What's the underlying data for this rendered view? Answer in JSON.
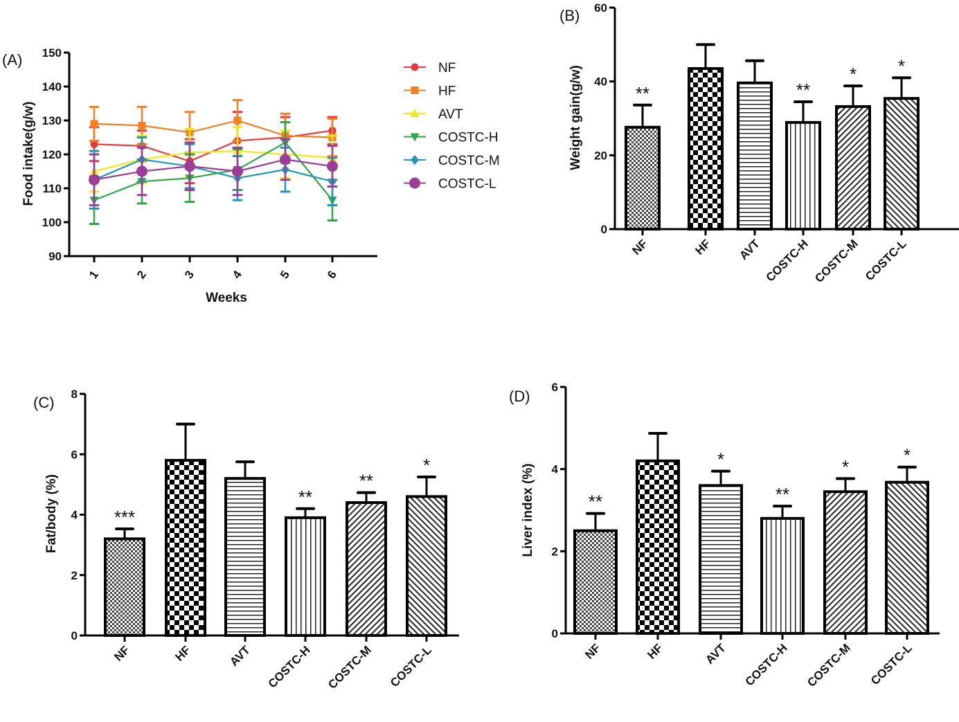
{
  "chart_data": [
    {
      "id": "A",
      "type": "line",
      "panel_label": "(A)",
      "title": "",
      "xlabel": "Weeks",
      "ylabel": "Food intake(g/w)",
      "x": [
        1,
        2,
        3,
        4,
        5,
        6
      ],
      "x_tick_labels": [
        "1",
        "2",
        "3",
        "4",
        "5",
        "6"
      ],
      "ylim": [
        90,
        150
      ],
      "y_ticks": [
        90,
        100,
        110,
        120,
        130,
        140,
        150
      ],
      "grid": false,
      "legend_position": "right",
      "series": [
        {
          "name": "NF",
          "color": "#e8383d",
          "marker": "circle",
          "values": [
            123,
            122.5,
            118,
            124,
            125,
            127
          ],
          "errors": [
            5,
            4.5,
            6.5,
            8.5,
            6,
            4
          ]
        },
        {
          "name": "HF",
          "color": "#f47f20",
          "marker": "square",
          "values": [
            129,
            128.5,
            126.5,
            130,
            125.5,
            125
          ],
          "errors": [
            5,
            5.5,
            6,
            6,
            6.5,
            5.5
          ]
        },
        {
          "name": "AVT",
          "color": "#f5e81a",
          "marker": "triangle-up",
          "values": [
            115,
            118.5,
            120.5,
            121,
            120,
            119
          ],
          "errors": [
            6,
            7,
            7,
            7,
            7,
            6.5
          ]
        },
        {
          "name": "COSTC-H",
          "color": "#2ea844",
          "marker": "triangle-down",
          "values": [
            106.5,
            112,
            113,
            115.5,
            123.5,
            106.5
          ],
          "errors": [
            7,
            6.5,
            7,
            6,
            6,
            6
          ]
        },
        {
          "name": "COSTC-M",
          "color": "#2196b8",
          "marker": "diamond",
          "values": [
            112.5,
            118.5,
            116.5,
            113,
            115.5,
            112
          ],
          "errors": [
            8.5,
            6.5,
            6.5,
            6.5,
            6.5,
            7
          ]
        },
        {
          "name": "COSTC-L",
          "color": "#9c3d9a",
          "marker": "big-circle",
          "values": [
            112.5,
            115,
            116.5,
            115,
            118.5,
            116.5
          ],
          "errors": [
            7.5,
            7,
            7,
            7,
            6,
            6
          ]
        }
      ]
    },
    {
      "id": "B",
      "type": "bar",
      "panel_label": "(B)",
      "title": "",
      "xlabel": "",
      "ylabel": "Weight gain(g/w)",
      "categories": [
        "NF",
        "HF",
        "AVT",
        "COSTC-H",
        "COSTC-M",
        "COSTC-L"
      ],
      "values": [
        27.6,
        43.5,
        39.6,
        28.9,
        33.2,
        35.4
      ],
      "errors": [
        6.0,
        6.5,
        6.0,
        5.6,
        5.6,
        5.6
      ],
      "significance": [
        "**",
        "",
        "",
        "**",
        "*",
        "*"
      ],
      "patterns": [
        "fine-check",
        "coarse-check",
        "horizontal",
        "vertical",
        "diag-right",
        "diag-left"
      ],
      "ylim": [
        0,
        60
      ],
      "y_ticks": [
        0,
        20,
        40,
        60
      ],
      "grid": false
    },
    {
      "id": "C",
      "type": "bar",
      "panel_label": "(C)",
      "title": "",
      "xlabel": "",
      "ylabel": "Fat/body (%)",
      "categories": [
        "NF",
        "HF",
        "AVT",
        "COSTC-H",
        "COSTC-M",
        "COSTC-L"
      ],
      "values": [
        3.2,
        5.8,
        5.2,
        3.9,
        4.4,
        4.6
      ],
      "errors": [
        0.33,
        1.2,
        0.55,
        0.3,
        0.33,
        0.65
      ],
      "significance": [
        "***",
        "",
        "",
        "**",
        "**",
        "*"
      ],
      "patterns": [
        "fine-check",
        "coarse-check",
        "horizontal",
        "vertical",
        "diag-right",
        "diag-left"
      ],
      "ylim": [
        0,
        8
      ],
      "y_ticks": [
        0,
        2,
        4,
        6,
        8
      ],
      "grid": false
    },
    {
      "id": "D",
      "type": "bar",
      "panel_label": "(D)",
      "title": "",
      "xlabel": "",
      "ylabel": "Liver index (%)",
      "categories": [
        "NF",
        "HF",
        "AVT",
        "COSTC-H",
        "COSTC-M",
        "COSTC-L"
      ],
      "values": [
        2.5,
        4.2,
        3.6,
        2.8,
        3.45,
        3.68
      ],
      "errors": [
        0.42,
        0.67,
        0.35,
        0.3,
        0.32,
        0.37
      ],
      "significance": [
        "**",
        "",
        "*",
        "**",
        "*",
        "*"
      ],
      "patterns": [
        "fine-check",
        "coarse-check",
        "horizontal",
        "vertical",
        "diag-right",
        "diag-left"
      ],
      "ylim": [
        0,
        6
      ],
      "y_ticks": [
        0,
        2,
        4,
        6
      ],
      "grid": false
    }
  ]
}
